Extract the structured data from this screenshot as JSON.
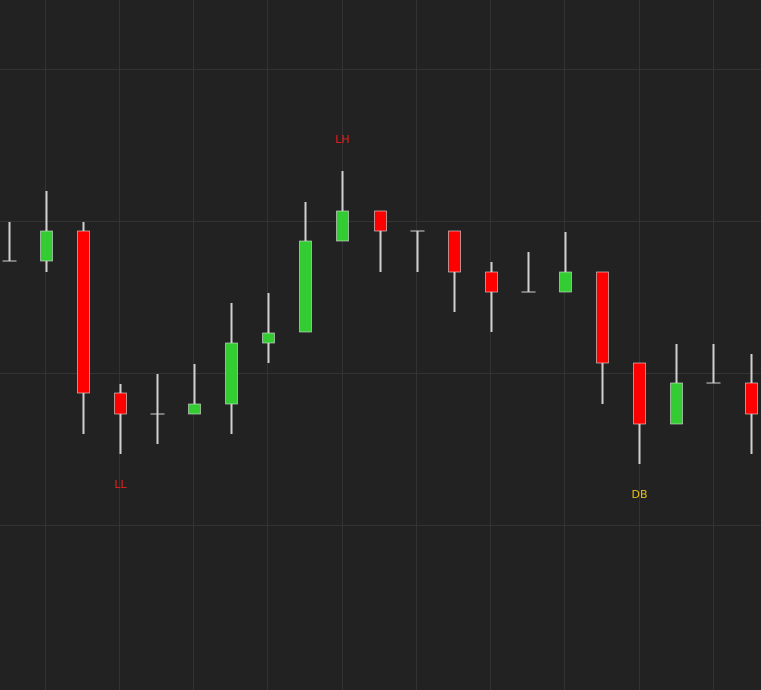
{
  "chart_data": {
    "type": "candlestick",
    "categories": [
      null,
      null,
      null,
      null,
      null,
      null,
      null,
      null,
      null,
      null,
      null,
      null,
      null,
      null,
      null,
      null,
      null,
      null,
      null,
      null,
      null
    ],
    "open": [
      429,
      429,
      459,
      297,
      276,
      276,
      286,
      347,
      358,
      449,
      479,
      459,
      459,
      418,
      398,
      398,
      418,
      327,
      266,
      307,
      307
    ],
    "high": [
      468,
      499,
      468,
      306,
      316,
      326,
      387,
      397,
      488,
      519,
      479,
      459,
      459,
      428,
      438,
      458,
      418,
      327,
      346,
      346,
      336
    ],
    "low": [
      429,
      418,
      256,
      236,
      246,
      276,
      256,
      327,
      358,
      449,
      418,
      418,
      378,
      358,
      398,
      398,
      286,
      226,
      266,
      307,
      236
    ],
    "close": [
      429,
      459,
      297,
      276,
      276,
      286,
      347,
      357,
      449,
      479,
      459,
      459,
      418,
      398,
      398,
      418,
      327,
      266,
      307,
      307,
      276
    ],
    "up_color": "#33cc33",
    "down_color": "#ff0000",
    "wick_color": "#d0d0d0",
    "ylim": [
      0,
      690
    ],
    "yticks": [
      165,
      317,
      469,
      621
    ],
    "grid": true,
    "annotations": [
      {
        "text": "LH",
        "index": 9,
        "position": "above",
        "color": "#e8211b"
      },
      {
        "text": "LL",
        "index": 3,
        "position": "below",
        "color": "#e8211b"
      },
      {
        "text": "DB",
        "index": 17,
        "position": "below",
        "color": "#e6c21a"
      }
    ]
  }
}
